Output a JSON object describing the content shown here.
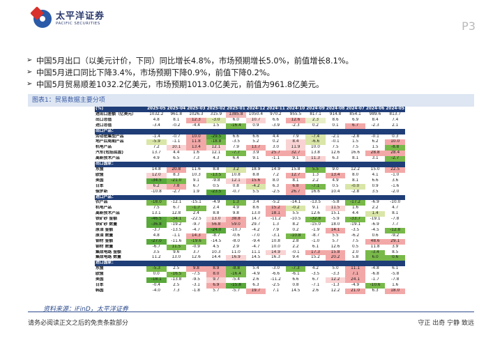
{
  "header": {
    "logo_cn": "太平洋证券",
    "logo_en": "PACIFIC SECURITIES",
    "page": "P3"
  },
  "bullets": [
    "中国5月出口（以美元计价，下同）同比增长4.8%，市场预期增长5.0%，前值增长8.1%。",
    "中国5月进口同比下降3.4%，市场预期下降0.9%，前值下降0.2%。",
    "中国5月贸易顺差1032.2亿美元，市场预期1013.0亿美元，前值为961.8亿美元。"
  ],
  "figure_title": "图表1：贸易数据主要分项",
  "table": {
    "corner": "(%)",
    "columns": [
      "2025-05",
      "2025-04",
      "2025-03",
      "2025-02",
      "2025-01",
      "2024-12",
      "2024-11",
      "2024-10",
      "2024-09",
      "2024-08",
      "2024-07",
      "2024-06",
      "2024-05"
    ],
    "rows": [
      {
        "type": "row",
        "label": "进出口差额（亿美元）",
        "values": [
          "1032.2",
          "961.8",
          "1026.3",
          "315.9",
          "1385.8",
          "1050.4",
          "970.2",
          "955.5",
          "817.1",
          "914.8",
          "854.1",
          "989.6",
          "813.7"
        ],
        "colors": [
          "",
          "",
          "",
          "",
          "#f2b8b8",
          "",
          "",
          "",
          "",
          "",
          "",
          "",
          ""
        ]
      },
      {
        "type": "row",
        "label": "出口总值",
        "values": [
          "4.8",
          "8.1",
          "12.3",
          "-3.0",
          "6.0",
          "10.7",
          "6.6",
          "12.6",
          "2.3",
          "8.6",
          "6.9",
          "8.4",
          "7.4"
        ],
        "colors": [
          "#ffffff",
          "#ffffff",
          "#f3a8a8",
          "#d9e6a8",
          "#ffffff",
          "#f9d3d3",
          "#ffffff",
          "#f3a8a8",
          "#e8eec6",
          "#ffffff",
          "#ffffff",
          "#ffffff",
          "#ffffff"
        ]
      },
      {
        "type": "row",
        "label": "进口总值",
        "values": [
          "-3.4",
          "-0.2",
          "-4.4",
          "1.5",
          "-16.4",
          "0.9",
          "-3.9",
          "-2.3",
          "0.2",
          "0.1",
          "6.7",
          "-2.3",
          "2.1"
        ],
        "colors": [
          "#ffffff",
          "#ffffff",
          "#ffffff",
          "#ffffff",
          "#78b94a",
          "#ffffff",
          "#ffffff",
          "#ffffff",
          "#ffffff",
          "#ffffff",
          "#f3a8a8",
          "#ffffff",
          "#ffffff"
        ]
      },
      {
        "type": "sec",
        "label": "出口产品："
      },
      {
        "type": "row",
        "label": "劳动密集型产品",
        "values": [
          "-1.4",
          "-0.7",
          "10.0",
          "-29.5",
          "6.6",
          "6.6",
          "4.4",
          "7.9",
          "-7.4",
          "-2.1",
          "-2.8",
          "-0.1",
          "0.3"
        ],
        "colors": [
          "#ffffff",
          "#ffffff",
          "#f3a8a8",
          "#58a83a",
          "#ffffff",
          "#ffffff",
          "#ffffff",
          "#ffffff",
          "#d9e6a8",
          "#ffffff",
          "#ffffff",
          "#ffffff",
          "#ffffff"
        ]
      },
      {
        "type": "row",
        "label": "地产后周期产品",
        "values": [
          "-5.9",
          "-1.1",
          "11.8",
          "-18.8",
          "-3.5",
          "5.2",
          "0.2",
          "8.4",
          "-6.6",
          "-0.1",
          "1.5",
          "6.2",
          "10.0"
        ],
        "colors": [
          "#d9e6a8",
          "#ffffff",
          "#f3a8a8",
          "#78b94a",
          "#ffffff",
          "#ffffff",
          "#ffffff",
          "#f9d3d3",
          "#d9e6a8",
          "#ffffff",
          "#ffffff",
          "#ffffff",
          "#f3a8a8"
        ]
      },
      {
        "type": "row",
        "label": "机电产品",
        "values": [
          "7.2",
          "10.1",
          "13.4",
          "12.1",
          "7.9",
          "13.7",
          "3.0",
          "11.9",
          "10.0",
          "7.5",
          "7.5",
          "1.5",
          "-8.8"
        ],
        "colors": [
          "#ffffff",
          "#f9d3d3",
          "#f3a8a8",
          "#f9d3d3",
          "#ffffff",
          "#f3a8a8",
          "#ffffff",
          "#f9d3d3",
          "#ffffff",
          "#ffffff",
          "#ffffff",
          "#ffffff",
          "#78b94a"
        ]
      },
      {
        "type": "row",
        "label": "汽车(包括底盘)",
        "values": [
          "13.7",
          "4.4",
          "1.6",
          "12.1",
          "-7.7",
          "3.9",
          "25.7",
          "32.7",
          "13.8",
          "12.6",
          "16.6",
          "28.8",
          "28.4"
        ],
        "colors": [
          "#ffffff",
          "#ffffff",
          "#ffffff",
          "#ffffff",
          "#78b94a",
          "#ffffff",
          "#f3a8a8",
          "#f3a8a8",
          "#ffffff",
          "#ffffff",
          "#ffffff",
          "#f3a8a8",
          "#f3a8a8"
        ]
      },
      {
        "type": "row",
        "label": "高新技术产品",
        "values": [
          "4.9",
          "6.5",
          "7.3",
          "4.3",
          "6.4",
          "9.1",
          "-1.1",
          "9.1",
          "11.3",
          "6.3",
          "8.1",
          "3.1",
          "-2.7"
        ],
        "colors": [
          "#ffffff",
          "#ffffff",
          "#ffffff",
          "#ffffff",
          "#ffffff",
          "#ffffff",
          "#ffffff",
          "#ffffff",
          "#f9d3d3",
          "#ffffff",
          "#ffffff",
          "#ffffff",
          "#78b94a"
        ]
      },
      {
        "type": "sec",
        "label": "出口国家："
      },
      {
        "type": "row",
        "label": "东盟",
        "values": [
          "14.8",
          "20.8",
          "11.6",
          "8.8",
          "3.2",
          "18.9",
          "14.9",
          "15.8",
          "5.5",
          "9.0",
          "12.2",
          "15.0",
          "22.5"
        ],
        "colors": [
          "#ffffff",
          "#f3a8a8",
          "#ffffff",
          "#ffffff",
          "#d9e6a8",
          "#ffffff",
          "#ffffff",
          "#ffffff",
          "#78b94a",
          "#ffffff",
          "#ffffff",
          "#ffffff",
          "#f3a8a8"
        ]
      },
      {
        "type": "row",
        "label": "欧盟",
        "values": [
          "12.0",
          "8.3",
          "10.3",
          "-13.5",
          "10.8",
          "8.8",
          "7.2",
          "12.7",
          "1.3",
          "13.4",
          "8.0",
          "4.1",
          "-1.0"
        ],
        "colors": [
          "#f9d3d3",
          "#ffffff",
          "#ffffff",
          "#78b94a",
          "#ffffff",
          "#ffffff",
          "#ffffff",
          "#f3a8a8",
          "#ffffff",
          "#f3a8a8",
          "#ffffff",
          "#ffffff",
          "#ffffff"
        ]
      },
      {
        "type": "row",
        "label": "美国",
        "values": [
          "-34.5",
          "-21.0",
          "9.1",
          "-9.8",
          "12.1",
          "15.6",
          "8.0",
          "8.1",
          "2.2",
          "4.9",
          "8.1",
          "6.6",
          "3.6"
        ],
        "colors": [
          "#58a83a",
          "#78b94a",
          "#ffffff",
          "#ffffff",
          "#f9d3d3",
          "#f3a8a8",
          "#ffffff",
          "#ffffff",
          "#ffffff",
          "#ffffff",
          "#ffffff",
          "#ffffff",
          "#ffffff"
        ]
      },
      {
        "type": "row",
        "label": "日本",
        "values": [
          "6.2",
          "7.8",
          "6.7",
          "0.5",
          "0.8",
          "-4.2",
          "6.3",
          "6.8",
          "-7.1",
          "0.5",
          "-0.0",
          "0.9",
          "-1.6"
        ],
        "colors": [
          "#f9d3d3",
          "#f3a8a8",
          "#ffffff",
          "#ffffff",
          "#ffffff",
          "#d9e6a8",
          "#ffffff",
          "#f3a8a8",
          "#78b94a",
          "#ffffff",
          "#d9e6a8",
          "#ffffff",
          "#ffffff"
        ]
      },
      {
        "type": "row",
        "label": "俄罗斯",
        "values": [
          "-10.8",
          "-2.7",
          "1.9",
          "-23.5",
          "-0.7",
          "5.5",
          "-2.5",
          "26.7",
          "16.6",
          "10.4",
          "-2.8",
          "3.5",
          "-2.0"
        ],
        "colors": [
          "#ffffff",
          "#ffffff",
          "#ffffff",
          "#58a83a",
          "#ffffff",
          "#ffffff",
          "#ffffff",
          "#f3a8a8",
          "#ffffff",
          "#ffffff",
          "#ffffff",
          "#ffffff",
          "#ffffff"
        ]
      },
      {
        "type": "sec",
        "label": "进口产品："
      },
      {
        "type": "row",
        "label": "农产品",
        "values": [
          "-18.0",
          "-12.1",
          "-15.1",
          "-4.9",
          "1.3",
          "3.4",
          "-5.2",
          "-14.1",
          "-13.5",
          "-5.8",
          "-17.2",
          "-6.9",
          "-10.0"
        ],
        "colors": [
          "#78b94a",
          "#ffffff",
          "#ffffff",
          "#ffffff",
          "#78b94a",
          "#ffffff",
          "#ffffff",
          "#ffffff",
          "#ffffff",
          "#ffffff",
          "#78b94a",
          "#ffffff",
          "#ffffff"
        ]
      },
      {
        "type": "row",
        "label": "机电产品",
        "values": [
          "7.5",
          "6.7",
          "-1.7",
          "2.4",
          "4.9",
          "8.6",
          "15.2",
          "-0.2",
          "9.1",
          "11.5",
          "1.6",
          "2.2",
          "4.7"
        ],
        "colors": [
          "#ffffff",
          "#ffffff",
          "#78b94a",
          "#ffffff",
          "#ffffff",
          "#ffffff",
          "#f3a8a8",
          "#d9e6a8",
          "#ffffff",
          "#f9d3d3",
          "#ffffff",
          "#ffffff",
          "#ffffff"
        ]
      },
      {
        "type": "row",
        "label": "高新技术产品",
        "values": [
          "13.1",
          "12.8",
          "2.4",
          "8.8",
          "9.8",
          "13.0",
          "18.1",
          "5.5",
          "12.6",
          "15.1",
          "4.4",
          "1.4",
          "8.1"
        ],
        "colors": [
          "#ffffff",
          "#ffffff",
          "#ffffff",
          "#ffffff",
          "#ffffff",
          "#ffffff",
          "#f3a8a8",
          "#ffffff",
          "#ffffff",
          "#ffffff",
          "#ffffff",
          "#d9e6a8",
          "#ffffff"
        ]
      },
      {
        "type": "row",
        "label": "铁矿砂 金额",
        "values": [
          "-46.5",
          "-34.1",
          "-22.5",
          "13.0",
          "38.8",
          "14.7",
          "-11.2",
          "-10.5",
          "-32.8",
          "-5.9",
          "-33.7",
          "-19.1",
          "-7.8"
        ],
        "colors": [
          "#58a83a",
          "#78b94a",
          "#ffffff",
          "#f9d3d3",
          "#f3a8a8",
          "#ffffff",
          "#ffffff",
          "#ffffff",
          "#78b94a",
          "#ffffff",
          "#78b94a",
          "#ffffff",
          "#ffffff"
        ]
      },
      {
        "type": "row",
        "label": "铁矿砂 数量",
        "values": [
          "-36.8",
          "-19.2",
          "-9.7",
          "56.8",
          "59.0",
          "29.7",
          "1.3",
          "8.2",
          "-15.0",
          "18.0",
          "-19.1",
          "-6.9",
          "7.7"
        ],
        "colors": [
          "#58a83a",
          "#ffffff",
          "#ffffff",
          "#f3a8a8",
          "#f3a8a8",
          "#ffffff",
          "#ffffff",
          "#ffffff",
          "#ffffff",
          "#ffffff",
          "#ffffff",
          "#ffffff",
          "#ffffff"
        ]
      },
      {
        "type": "row",
        "label": "原油 金额",
        "values": [
          "-3.7",
          "-13.5",
          "-4.7",
          "-24.0",
          "-10.7",
          "-4.2",
          "7.9",
          "0.2",
          "-1.9",
          "14.1",
          "-3.5",
          "-4.5",
          "-12.8"
        ],
        "colors": [
          "#ffffff",
          "#ffffff",
          "#ffffff",
          "#58a83a",
          "#ffffff",
          "#ffffff",
          "#ffffff",
          "#ffffff",
          "#ffffff",
          "#f3a8a8",
          "#ffffff",
          "#ffffff",
          "#78b94a"
        ]
      },
      {
        "type": "row",
        "label": "原油 数量",
        "values": [
          "4.8",
          "-1.1",
          "14.3",
          "-8.7",
          "-0.6",
          "-7.0",
          "-3.1",
          "-10.8",
          "-8.7",
          "5.5",
          "-6.2",
          "0.6",
          "-9.2"
        ],
        "colors": [
          "#ffffff",
          "#ffffff",
          "#f3a8a8",
          "#ffffff",
          "#ffffff",
          "#ffffff",
          "#ffffff",
          "#78b94a",
          "#ffffff",
          "#ffffff",
          "#ffffff",
          "#ffffff",
          "#ffffff"
        ]
      },
      {
        "type": "row",
        "label": "钢材 金额",
        "values": [
          "-27.0",
          "-11.6",
          "-19.6",
          "-14.5",
          "-8.0",
          "-9.4",
          "10.8",
          "2.8",
          "-1.0",
          "5.7",
          "7.5",
          "48.6",
          "29.1"
        ],
        "colors": [
          "#58a83a",
          "#ffffff",
          "#78b94a",
          "#ffffff",
          "#ffffff",
          "#ffffff",
          "#ffffff",
          "#ffffff",
          "#ffffff",
          "#ffffff",
          "#ffffff",
          "#f3a8a8",
          "#f3a8a8"
        ]
      },
      {
        "type": "row",
        "label": "钢材 数量",
        "values": [
          "-6.7",
          "11.5",
          "-0.9",
          "4.5",
          "2.9",
          "-4.7",
          "10.0",
          "2.2",
          "6.1",
          "12.6",
          "0.5",
          "11.8",
          "3.9"
        ],
        "colors": [
          "#ffffff",
          "#78b94a",
          "#ffffff",
          "#ffffff",
          "#ffffff",
          "#ffffff",
          "#ffffff",
          "#ffffff",
          "#ffffff",
          "#ffffff",
          "#ffffff",
          "#ffffff",
          "#ffffff"
        ]
      },
      {
        "type": "row",
        "label": "集成电路 金额",
        "values": [
          "3.5",
          "9.6",
          "3.7",
          "10.3",
          "11.0",
          "11.1",
          "14.9",
          "-0.1",
          "17.3",
          "15.8",
          "2.0",
          "-3.4",
          "8.5"
        ],
        "colors": [
          "#ffffff",
          "#ffffff",
          "#ffffff",
          "#ffffff",
          "#ffffff",
          "#ffffff",
          "#f9d3d3",
          "#ffffff",
          "#f3a8a8",
          "#f3a8a8",
          "#ffffff",
          "#78b94a",
          "#ffffff"
        ]
      },
      {
        "type": "row",
        "label": "集成电路 数量",
        "values": [
          "11.2",
          "13.0",
          "12.6",
          "14.4",
          "16.9",
          "14.5",
          "16.3",
          "9.4",
          "15.2",
          "20.2",
          "5.8",
          "6.0",
          "0.6"
        ],
        "colors": [
          "#ffffff",
          "#ffffff",
          "#ffffff",
          "#ffffff",
          "#f9d3d3",
          "#ffffff",
          "#ffffff",
          "#ffffff",
          "#ffffff",
          "#f3a8a8",
          "#ffffff",
          "#78b94a",
          "#78b94a"
        ]
      },
      {
        "type": "sec",
        "label": "进口国家："
      },
      {
        "type": "row",
        "label": "东盟",
        "values": [
          "-5.3",
          "2.5",
          "9.8",
          "8.9",
          "-8.8",
          "5.4",
          "-3.0",
          "-7.3",
          "4.2",
          "5.0",
          "11.1",
          "-4.8",
          "6.1"
        ],
        "colors": [
          "#78b94a",
          "#ffffff",
          "#f3a8a8",
          "#f3a8a8",
          "#78b94a",
          "#ffffff",
          "#ffffff",
          "#78b94a",
          "#ffffff",
          "#ffffff",
          "#f3a8a8",
          "#ffffff",
          "#ffffff"
        ]
      },
      {
        "type": "row",
        "label": "欧盟",
        "values": [
          "0.0",
          "-16.5",
          "-7.5",
          "8.0",
          "-16.4",
          "-4.9",
          "-6.6",
          "-6.1",
          "-3.5",
          "-3.3",
          "7.1",
          "-6.8",
          "-5.8"
        ],
        "colors": [
          "#ffffff",
          "#78b94a",
          "#ffffff",
          "#f3a8a8",
          "#78b94a",
          "#ffffff",
          "#ffffff",
          "#ffffff",
          "#ffffff",
          "#ffffff",
          "#f3a8a8",
          "#ffffff",
          "#ffffff"
        ]
      },
      {
        "type": "row",
        "label": "美国",
        "values": [
          "-18.1",
          "-13.8",
          "-9.5",
          "9.7",
          "-5.4",
          "2.6",
          "-11.2",
          "6.6",
          "6.7",
          "12.2",
          "24.1",
          "-1.7",
          "-7.8"
        ],
        "colors": [
          "#58a83a",
          "#ffffff",
          "#ffffff",
          "#f9d3d3",
          "#ffffff",
          "#ffffff",
          "#ffffff",
          "#ffffff",
          "#ffffff",
          "#f9d3d3",
          "#f3a8a8",
          "#ffffff",
          "#ffffff"
        ]
      },
      {
        "type": "row",
        "label": "日本",
        "values": [
          "-0.4",
          "2.5",
          "-3.1",
          "6.9",
          "-15.8",
          "6.3",
          "-2.5",
          "0.8",
          "-7.1",
          "-1.3",
          "-4.9",
          "-10.6",
          "1.6"
        ],
        "colors": [
          "#ffffff",
          "#ffffff",
          "#ffffff",
          "#f3a8a8",
          "#58a83a",
          "#ffffff",
          "#ffffff",
          "#ffffff",
          "#ffffff",
          "#ffffff",
          "#ffffff",
          "#78b94a",
          "#ffffff"
        ]
      },
      {
        "type": "row",
        "label": "韩国",
        "values": [
          "-4.0",
          "7.3",
          "-1.8",
          "5.7",
          "-5.7",
          "19.7",
          "7.1",
          "14.5",
          "2.6",
          "12.2",
          "21.0",
          "6.3",
          "18.0"
        ],
        "colors": [
          "#ffffff",
          "#ffffff",
          "#ffffff",
          "#ffffff",
          "#ffffff",
          "#f3a8a8",
          "#ffffff",
          "#ffffff",
          "#ffffff",
          "#ffffff",
          "#f3a8a8",
          "#ffffff",
          "#f3a8a8"
        ]
      }
    ]
  },
  "source": "资料来源：iFinD，太平洋证券",
  "footer": {
    "left": "请务必阅读正文之后的免责条款部分",
    "right": "守正 出奇 宁静 致远"
  }
}
